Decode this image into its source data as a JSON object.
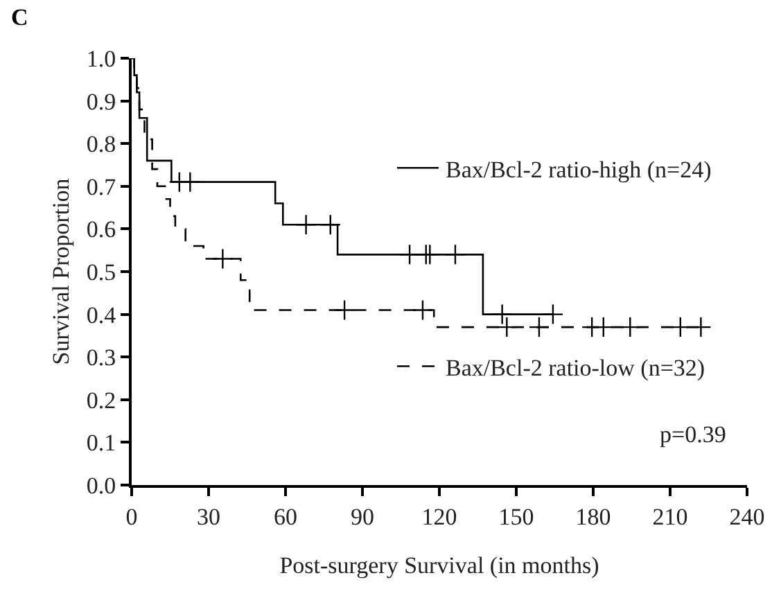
{
  "chart_data": {
    "type": "step",
    "title": "C",
    "xlabel": "Post-surgery Survival (in months)",
    "ylabel": "Survival Proportion",
    "annotations": [
      "p=0.39"
    ],
    "series": [
      {
        "name": "Bax/Bcl-2 ratio-high (n=24)",
        "color": "#000000",
        "line_style": "solid",
        "x": [
          0,
          1,
          2,
          3,
          6,
          15.5,
          56,
          59,
          80.3,
          137,
          164.3
        ],
        "values": [
          1.0,
          0.96,
          0.92,
          0.86,
          0.76,
          0.71,
          0.66,
          0.61,
          0.54,
          0.4,
          0.4
        ]
      },
      {
        "name": "Bax/Bcl-2 ratio-low (n=32)",
        "color": "#000000",
        "line_style": "dashed",
        "x": [
          0,
          1,
          2,
          3,
          5,
          8,
          10,
          13,
          15,
          17,
          21,
          28,
          42.5,
          46,
          49,
          117.9,
          222
        ],
        "values": [
          1.0,
          0.97,
          0.93,
          0.88,
          0.81,
          0.74,
          0.7,
          0.67,
          0.63,
          0.6,
          0.56,
          0.53,
          0.48,
          0.41,
          0.41,
          0.37,
          0.37
        ]
      },
      {
        "type": "scatter",
        "marker": "cross",
        "color": "#000000",
        "x": [
          18.6,
          22.8,
          68,
          77.5,
          108.4,
          114.8,
          116.3,
          126.2,
          144.5,
          164.3
        ],
        "values": [
          0.71,
          0.71,
          0.61,
          0.61,
          0.54,
          0.54,
          0.54,
          0.54,
          0.4,
          0.4
        ]
      },
      {
        "type": "scatter",
        "marker": "cross",
        "color": "#000000",
        "x": [
          35.5,
          83,
          113.5,
          146.3,
          158.9,
          179.5,
          184,
          194.4,
          214,
          222
        ],
        "values": [
          0.53,
          0.41,
          0.41,
          0.37,
          0.37,
          0.37,
          0.37,
          0.37,
          0.37,
          0.37
        ]
      }
    ],
    "xlim": [
      0,
      240
    ],
    "xticks": [
      0,
      30,
      60,
      90,
      120,
      150,
      180,
      210,
      240
    ],
    "ylim": [
      0,
      1.0
    ],
    "yticks": [
      {
        "value": 0,
        "label": "0.0"
      },
      0.1,
      0.2,
      0.3,
      0.4,
      0.5,
      0.6,
      0.7,
      0.8,
      0.9,
      {
        "value": 1,
        "label": "1.0"
      }
    ],
    "grid": false,
    "legend": "right"
  }
}
